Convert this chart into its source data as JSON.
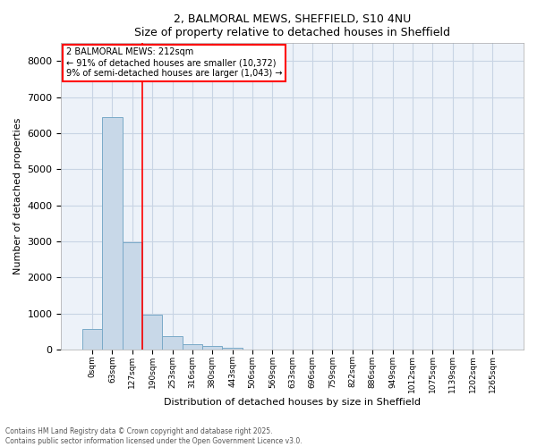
{
  "title_line1": "2, BALMORAL MEWS, SHEFFIELD, S10 4NU",
  "title_line2": "Size of property relative to detached houses in Sheffield",
  "xlabel": "Distribution of detached houses by size in Sheffield",
  "ylabel": "Number of detached properties",
  "bar_color": "#c8d8e8",
  "bar_edgecolor": "#7aaac8",
  "grid_color": "#c8d4e4",
  "background_color": "#edf2f9",
  "vline_color": "red",
  "vline_x_index": 2.5,
  "annotation_text": "2 BALMORAL MEWS: 212sqm\n← 91% of detached houses are smaller (10,372)\n9% of semi-detached houses are larger (1,043) →",
  "categories": [
    "0sqm",
    "63sqm",
    "127sqm",
    "190sqm",
    "253sqm",
    "316sqm",
    "380sqm",
    "443sqm",
    "506sqm",
    "569sqm",
    "633sqm",
    "696sqm",
    "759sqm",
    "822sqm",
    "886sqm",
    "949sqm",
    "1012sqm",
    "1075sqm",
    "1139sqm",
    "1202sqm",
    "1265sqm"
  ],
  "values": [
    570,
    6450,
    2980,
    960,
    370,
    160,
    100,
    60,
    0,
    0,
    0,
    0,
    0,
    0,
    0,
    0,
    0,
    0,
    0,
    0,
    0
  ],
  "ylim": [
    0,
    8500
  ],
  "yticks": [
    0,
    1000,
    2000,
    3000,
    4000,
    5000,
    6000,
    7000,
    8000
  ],
  "footnote": "Contains HM Land Registry data © Crown copyright and database right 2025.\nContains public sector information licensed under the Open Government Licence v3.0.",
  "figsize": [
    6.0,
    5.0
  ],
  "dpi": 100
}
